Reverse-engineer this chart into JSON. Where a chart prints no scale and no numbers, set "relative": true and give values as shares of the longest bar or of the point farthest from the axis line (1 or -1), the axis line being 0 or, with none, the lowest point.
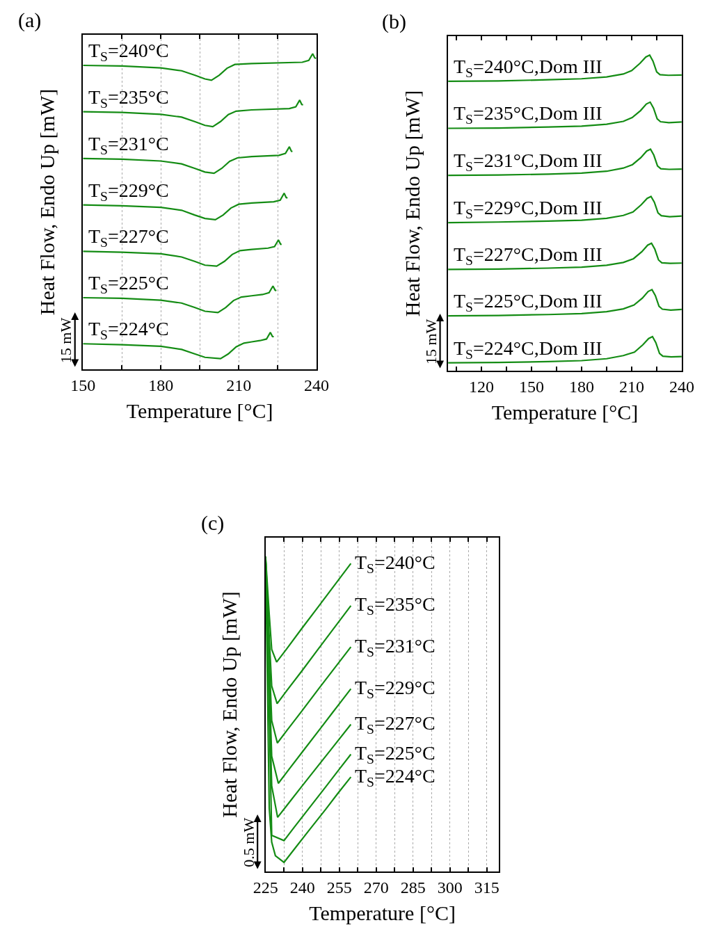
{
  "chart_data": [
    {
      "type": "line",
      "title": "(a)",
      "xlabel": "Temperature [°C]",
      "ylabel": "Heat Flow, Endo Up [mW]",
      "relative": true,
      "grid": "x",
      "legend": false,
      "annotations": [
        "15 mW"
      ],
      "xlim": [
        150,
        240
      ],
      "xticks": [
        150,
        {
          "value": 165,
          "label": null
        },
        180,
        {
          "value": 195,
          "label": null
        },
        210,
        {
          "value": 225,
          "label": null
        },
        240
      ],
      "series": [
        {
          "name": "T$_{S}$=240°C",
          "color": "#148c14",
          "x": [
            150,
            165,
            180,
            188,
            193,
            197,
            199.5,
            202.5,
            205.5,
            208.5,
            215,
            234.5,
            237,
            238.5,
            239.3,
            239.8
          ],
          "values": [
            0.963,
            0.961,
            0.955,
            0.946,
            0.932,
            0.92,
            0.916,
            0.932,
            0.954,
            0.966,
            0.969,
            0.973,
            0.979,
            1.0,
            0.987,
            0.985
          ]
        },
        {
          "name": "T$_{S}$=235°C",
          "color": "#148c14",
          "x": [
            150,
            165,
            180,
            188,
            193,
            197,
            200,
            203,
            206,
            209,
            215,
            229.5,
            232,
            233.5,
            234.3,
            234.8
          ],
          "values": [
            0.816,
            0.814,
            0.808,
            0.799,
            0.785,
            0.773,
            0.769,
            0.785,
            0.807,
            0.818,
            0.822,
            0.826,
            0.832,
            0.853,
            0.839,
            0.838
          ]
        },
        {
          "name": "T$_{S}$=231°C",
          "color": "#148c14",
          "x": [
            150,
            165,
            180,
            188,
            193,
            197,
            200.5,
            203.5,
            206.5,
            209.5,
            215,
            225.5,
            228,
            229.5,
            230.3,
            230.7
          ],
          "values": [
            0.668,
            0.666,
            0.66,
            0.651,
            0.637,
            0.625,
            0.621,
            0.637,
            0.659,
            0.67,
            0.674,
            0.678,
            0.684,
            0.705,
            0.691,
            0.69
          ]
        },
        {
          "name": "T$_{S}$=229°C",
          "color": "#148c14",
          "x": [
            150,
            165,
            180,
            188,
            193,
            197,
            201,
            204,
            207,
            210,
            215,
            223.5,
            226,
            227.5,
            228.3,
            228.8
          ],
          "values": [
            0.521,
            0.518,
            0.513,
            0.504,
            0.489,
            0.478,
            0.474,
            0.489,
            0.511,
            0.523,
            0.527,
            0.531,
            0.536,
            0.558,
            0.544,
            0.543
          ]
        },
        {
          "name": "T$_{S}$=227°C",
          "color": "#148c14",
          "x": [
            150,
            165,
            180,
            188,
            193,
            197,
            201.5,
            204.5,
            207.5,
            210.5,
            215,
            221.3,
            223.8,
            225.3,
            226.1,
            226.5
          ],
          "values": [
            0.374,
            0.371,
            0.366,
            0.356,
            0.342,
            0.33,
            0.327,
            0.342,
            0.364,
            0.376,
            0.38,
            0.384,
            0.389,
            0.41,
            0.397,
            0.395
          ]
        },
        {
          "name": "T$_{S}$=225°C",
          "color": "#148c14",
          "x": [
            150,
            165,
            180,
            188,
            193,
            197,
            202,
            205,
            208,
            211,
            215,
            219.2,
            221.7,
            223.2,
            224,
            224.5
          ],
          "values": [
            0.227,
            0.225,
            0.219,
            0.21,
            0.196,
            0.184,
            0.18,
            0.196,
            0.218,
            0.229,
            0.233,
            0.237,
            0.243,
            0.264,
            0.251,
            0.249
          ]
        },
        {
          "name": "T$_{S}$=224°C",
          "color": "#148c14",
          "x": [
            150,
            165,
            180,
            188,
            193,
            197,
            203,
            206,
            209,
            212,
            215,
            218.2,
            220.7,
            222.2,
            223,
            223.5
          ],
          "values": [
            0.081,
            0.078,
            0.073,
            0.063,
            0.049,
            0.038,
            0.034,
            0.049,
            0.071,
            0.083,
            0.087,
            0.091,
            0.096,
            0.117,
            0.104,
            0.103
          ]
        }
      ]
    },
    {
      "type": "line",
      "title": "(b)",
      "xlabel": "Temperature [°C]",
      "ylabel": "Heat Flow, Endo Up [mW]",
      "relative": true,
      "legend": false,
      "annotations": [
        "15 mW"
      ],
      "xlim": [
        100,
        240
      ],
      "xticks": [
        {
          "value": 105,
          "label": null
        },
        120,
        {
          "value": 135,
          "label": null
        },
        150,
        {
          "value": 165,
          "label": null
        },
        180,
        {
          "value": 195,
          "label": null
        },
        210,
        {
          "value": 225,
          "label": null
        },
        240
      ],
      "series": [
        {
          "name": "T$_{S}$=240°C,Dom III",
          "color": "#148c14",
          "x": [
            100,
            130,
            160,
            180,
            195,
            205,
            210,
            215,
            218.5,
            220.8,
            222.8,
            225,
            227,
            232,
            240
          ],
          "values": [
            0.917,
            0.918,
            0.922,
            0.925,
            0.931,
            0.94,
            0.951,
            0.974,
            0.994,
            1.0,
            0.981,
            0.947,
            0.938,
            0.936,
            0.937
          ]
        },
        {
          "name": "T$_{S}$=235°C,Dom III",
          "color": "#148c14",
          "x": [
            100,
            130,
            160,
            180,
            195,
            205,
            210.3,
            215.3,
            218.8,
            221.1,
            223.1,
            225.3,
            227.3,
            232.3,
            240
          ],
          "values": [
            0.768,
            0.769,
            0.772,
            0.775,
            0.781,
            0.79,
            0.802,
            0.824,
            0.845,
            0.851,
            0.832,
            0.798,
            0.789,
            0.786,
            0.788
          ]
        },
        {
          "name": "T$_{S}$=231°C,Dom III",
          "color": "#148c14",
          "x": [
            100,
            130,
            160,
            180,
            195,
            205,
            210.5,
            215.5,
            219,
            221.3,
            223.3,
            225.5,
            227.5,
            232.5,
            240
          ],
          "values": [
            0.619,
            0.62,
            0.623,
            0.626,
            0.632,
            0.642,
            0.653,
            0.675,
            0.696,
            0.702,
            0.683,
            0.649,
            0.64,
            0.638,
            0.639
          ]
        },
        {
          "name": "T$_{S}$=229°C,Dom III",
          "color": "#148c14",
          "x": [
            100,
            130,
            160,
            180,
            195,
            205,
            210.8,
            215.8,
            219.3,
            221.6,
            223.6,
            225.8,
            227.8,
            232.8,
            240
          ],
          "values": [
            0.469,
            0.471,
            0.474,
            0.477,
            0.483,
            0.492,
            0.503,
            0.526,
            0.546,
            0.552,
            0.534,
            0.5,
            0.491,
            0.488,
            0.49
          ]
        },
        {
          "name": "T$_{S}$=227°C,Dom III",
          "color": "#148c14",
          "x": [
            100,
            130,
            160,
            180,
            195,
            205,
            211.1,
            216.1,
            219.6,
            221.9,
            223.9,
            226.1,
            228.1,
            233.1,
            240
          ],
          "values": [
            0.321,
            0.322,
            0.325,
            0.328,
            0.334,
            0.343,
            0.355,
            0.377,
            0.398,
            0.404,
            0.385,
            0.351,
            0.342,
            0.34,
            0.341
          ]
        },
        {
          "name": "T$_{S}$=225°C,Dom III",
          "color": "#148c14",
          "x": [
            100,
            130,
            160,
            180,
            195,
            205,
            211.4,
            216.4,
            219.9,
            222.2,
            224.2,
            226.4,
            228.4,
            233.4,
            240
          ],
          "values": [
            0.174,
            0.175,
            0.178,
            0.181,
            0.187,
            0.196,
            0.208,
            0.23,
            0.251,
            0.257,
            0.238,
            0.204,
            0.195,
            0.192,
            0.194
          ]
        },
        {
          "name": "T$_{S}$=224°C,Dom III",
          "color": "#148c14",
          "x": [
            100,
            130,
            160,
            180,
            195,
            205,
            211.7,
            216.7,
            220.2,
            222.5,
            224.5,
            226.7,
            228.7,
            233.7,
            240
          ],
          "values": [
            0.025,
            0.026,
            0.029,
            0.032,
            0.038,
            0.048,
            0.059,
            0.082,
            0.102,
            0.108,
            0.089,
            0.055,
            0.046,
            0.044,
            0.045
          ]
        }
      ]
    },
    {
      "type": "line",
      "title": "(c)",
      "xlabel": "Temperature [°C]",
      "ylabel": "Heat Flow, Endo Up [mW]",
      "relative": true,
      "grid": "x",
      "legend": false,
      "annotations": [
        "0.5 mW"
      ],
      "xlim": [
        225,
        320
      ],
      "xticks": [
        225,
        {
          "value": 232.5,
          "label": null
        },
        240,
        {
          "value": 247.5,
          "label": null
        },
        255,
        {
          "value": 262.5,
          "label": null
        },
        270,
        {
          "value": 277.5,
          "label": null
        },
        285,
        {
          "value": 292.5,
          "label": null
        },
        300,
        {
          "value": 307.5,
          "label": null
        },
        315
      ],
      "series": [
        {
          "name": "T$_{S}$=240°C",
          "color": "#148c14",
          "x": [
            225,
            226.5,
            227.5,
            229.5,
            233.5,
            239.5,
            246.5,
            251.5,
            259.7
          ],
          "values": [
            1.0,
            0.815,
            0.705,
            0.665,
            0.706,
            0.769,
            0.841,
            0.893,
            0.978
          ]
        },
        {
          "name": "T$_{S}$=235°C",
          "color": "#148c14",
          "x": [
            225,
            226.5,
            227.5,
            229.7,
            233.7,
            239.7,
            246.7,
            251.7,
            259.7
          ],
          "values": [
            1.0,
            0.743,
            0.589,
            0.533,
            0.575,
            0.636,
            0.709,
            0.761,
            0.844
          ]
        },
        {
          "name": "T$_{S}$=231°C",
          "color": "#148c14",
          "x": [
            225,
            226.5,
            227.5,
            229.8,
            233.8,
            239.8,
            246.8,
            251.8,
            259.7
          ],
          "values": [
            1.0,
            0.675,
            0.479,
            0.408,
            0.449,
            0.51,
            0.582,
            0.633,
            0.713
          ]
        },
        {
          "name": "T$_{S}$=229°C",
          "color": "#148c14",
          "x": [
            225,
            226.5,
            227.5,
            230.2,
            234.2,
            240.2,
            247.2,
            252.2,
            259.7
          ],
          "values": [
            1.0,
            0.604,
            0.366,
            0.28,
            0.321,
            0.382,
            0.453,
            0.504,
            0.58
          ]
        },
        {
          "name": "T$_{S}$=227°C",
          "color": "#148c14",
          "x": [
            225,
            226.5,
            227.5,
            229.9,
            233.9,
            239.9,
            246.9,
            251.9,
            259.7
          ],
          "values": [
            1.0,
            0.545,
            0.272,
            0.172,
            0.212,
            0.272,
            0.341,
            0.39,
            0.467
          ]
        },
        {
          "name": "T$_{S}$=225°C",
          "color": "#148c14",
          "x": [
            225,
            226.5,
            227.5,
            232.5,
            236.5,
            242.5,
            249.5,
            254.5,
            259.7
          ],
          "values": [
            1.0,
            0.504,
            0.115,
            0.098,
            0.139,
            0.199,
            0.269,
            0.32,
            0.372
          ]
        },
        {
          "name": "T$_{S}$=224°C",
          "color": "#148c14",
          "x": [
            225,
            226.5,
            227.5,
            229,
            232.5,
            236.5,
            242.5,
            249.5,
            254.5,
            259.7
          ],
          "values": [
            1.0,
            0.201,
            0.093,
            0.05,
            0.029,
            0.069,
            0.129,
            0.198,
            0.249,
            0.3
          ]
        }
      ]
    }
  ]
}
